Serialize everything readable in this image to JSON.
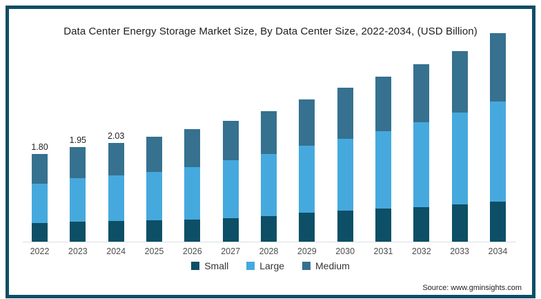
{
  "title": "Data Center Energy Storage Market Size, By Data Center Size, 2022-2034, (USD Billion)",
  "source": "Source: www.gminsights.com",
  "colors": {
    "frame": "#0e4d66",
    "axis": "#d9dde1",
    "small": "#0d4f66",
    "large": "#46a9dd",
    "medium": "#36718f"
  },
  "legend": {
    "items": [
      {
        "label": "Small",
        "color": "#0d4f66"
      },
      {
        "label": "Large",
        "color": "#46a9dd"
      },
      {
        "label": "Medium",
        "color": "#36718f"
      }
    ]
  },
  "chart_data": {
    "type": "bar",
    "stacked": true,
    "unit": "USD Billion",
    "title": "Data Center Energy Storage Market Size, By Data Center Size, 2022-2034, (USD Billion)",
    "categories": [
      "2022",
      "2023",
      "2024",
      "2025",
      "2026",
      "2027",
      "2028",
      "2029",
      "2030",
      "2031",
      "2032",
      "2033",
      "2034"
    ],
    "series": [
      {
        "name": "Small",
        "color": "#0d4f66",
        "values": [
          0.39,
          0.41,
          0.42,
          0.44,
          0.46,
          0.49,
          0.53,
          0.59,
          0.64,
          0.68,
          0.71,
          0.76,
          0.82
        ]
      },
      {
        "name": "Large",
        "color": "#46a9dd",
        "values": [
          0.8,
          0.89,
          0.94,
          1.0,
          1.08,
          1.18,
          1.27,
          1.38,
          1.48,
          1.59,
          1.74,
          1.89,
          2.06
        ]
      },
      {
        "name": "Medium",
        "color": "#36718f",
        "values": [
          0.61,
          0.65,
          0.67,
          0.71,
          0.77,
          0.82,
          0.88,
          0.95,
          1.04,
          1.12,
          1.2,
          1.27,
          1.4
        ]
      }
    ],
    "totals": [
      1.8,
      1.95,
      2.03,
      2.15,
      2.31,
      2.49,
      2.68,
      2.92,
      3.16,
      3.39,
      3.65,
      3.92,
      4.28
    ],
    "total_labels": [
      "1.80",
      "1.95",
      "2.03",
      "",
      "",
      "",
      "",
      "",
      "",
      "",
      "",
      "",
      ""
    ],
    "legend_position": "bottom",
    "grid": false,
    "y_axis_visible": false
  }
}
